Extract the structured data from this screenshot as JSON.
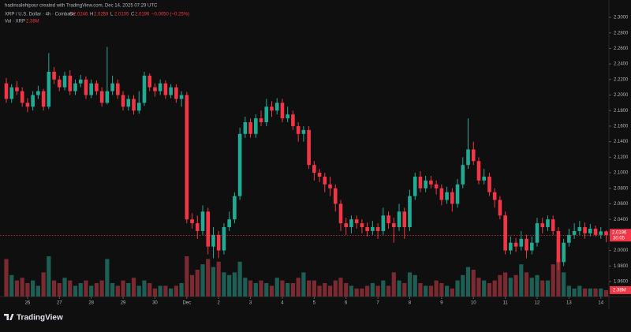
{
  "chart_data": {
    "type": "candlestick",
    "credit": "hadinsalehipour created with TradingView.com, Dec 14, 2025 07:29 UTC",
    "symbol": "XRP / U.S. Dollar · 4h · Coinbase",
    "legend_labels": [
      "O",
      "H",
      "L",
      "C"
    ],
    "change_text": "−0.0050 (−0.25%)",
    "volume_title": "Vol · XRP",
    "volume_label": "2.38M",
    "countdown": "30:05",
    "brand": "TradingView",
    "up_color": "#22ab94",
    "down_color": "#f23645",
    "up_volume_color": "#1d5f55",
    "down_volume_color": "#7a2a30",
    "ylim": [
      1.94,
      2.32
    ],
    "yticks": [
      {
        "value": 1.96,
        "label": "1.9600"
      },
      {
        "value": 1.98,
        "label": "1.9800"
      },
      {
        "value": 2.0,
        "label": "2.0000"
      },
      {
        "value": 2.02,
        "label": "2.0200"
      },
      {
        "value": 2.04,
        "label": "2.0400"
      },
      {
        "value": 2.06,
        "label": "2.0600"
      },
      {
        "value": 2.08,
        "label": "2.0800"
      },
      {
        "value": 2.1,
        "label": "2.1000"
      },
      {
        "value": 2.12,
        "label": "2.1200"
      },
      {
        "value": 2.14,
        "label": "2.1400"
      },
      {
        "value": 2.16,
        "label": "2.1600"
      },
      {
        "value": 2.18,
        "label": "2.1800"
      },
      {
        "value": 2.2,
        "label": "2.2000"
      },
      {
        "value": 2.22,
        "label": "2.2200"
      },
      {
        "value": 2.24,
        "label": "2.2400"
      },
      {
        "value": 2.26,
        "label": "2.2600"
      },
      {
        "value": 2.28,
        "label": "2.2800"
      },
      {
        "value": 2.3,
        "label": "2.3000"
      }
    ],
    "xticks": [
      {
        "value": 4,
        "label": "26"
      },
      {
        "value": 10,
        "label": "27"
      },
      {
        "value": 16,
        "label": "28"
      },
      {
        "value": 22,
        "label": "29"
      },
      {
        "value": 28,
        "label": "30"
      },
      {
        "value": 34,
        "label": "Dec"
      },
      {
        "value": 40,
        "label": "2"
      },
      {
        "value": 46,
        "label": "3"
      },
      {
        "value": 52,
        "label": "4"
      },
      {
        "value": 58,
        "label": "5"
      },
      {
        "value": 64,
        "label": "6"
      },
      {
        "value": 70,
        "label": "7"
      },
      {
        "value": 76,
        "label": "8"
      },
      {
        "value": 82,
        "label": "9"
      },
      {
        "value": 88,
        "label": "10"
      },
      {
        "value": 94,
        "label": "11"
      },
      {
        "value": 100,
        "label": "12"
      },
      {
        "value": 106,
        "label": "13"
      },
      {
        "value": 112,
        "label": "14"
      }
    ],
    "volume_ylim": [
      0,
      20
    ],
    "candles": [
      [
        2.215,
        2.222,
        2.19,
        2.195
      ],
      [
        2.195,
        2.214,
        2.19,
        2.21
      ],
      [
        2.21,
        2.218,
        2.2,
        2.205
      ],
      [
        2.205,
        2.21,
        2.185,
        2.19
      ],
      [
        2.19,
        2.196,
        2.178,
        2.185
      ],
      [
        2.185,
        2.205,
        2.18,
        2.2
      ],
      [
        2.2,
        2.212,
        2.195,
        2.205
      ],
      [
        2.205,
        2.208,
        2.18,
        2.185
      ],
      [
        2.185,
        2.254,
        2.182,
        2.23
      ],
      [
        2.23,
        2.236,
        2.214,
        2.22
      ],
      [
        2.22,
        2.225,
        2.205,
        2.21
      ],
      [
        2.21,
        2.23,
        2.206,
        2.225
      ],
      [
        2.225,
        2.232,
        2.2,
        2.205
      ],
      [
        2.205,
        2.22,
        2.2,
        2.215
      ],
      [
        2.215,
        2.226,
        2.21,
        2.22
      ],
      [
        2.22,
        2.224,
        2.195,
        2.2
      ],
      [
        2.2,
        2.22,
        2.196,
        2.215
      ],
      [
        2.215,
        2.219,
        2.2,
        2.205
      ],
      [
        2.205,
        2.21,
        2.185,
        2.19
      ],
      [
        2.19,
        2.262,
        2.188,
        2.205
      ],
      [
        2.205,
        2.225,
        2.2,
        2.215
      ],
      [
        2.215,
        2.22,
        2.195,
        2.2
      ],
      [
        2.2,
        2.205,
        2.18,
        2.185
      ],
      [
        2.185,
        2.2,
        2.18,
        2.195
      ],
      [
        2.195,
        2.2,
        2.175,
        2.18
      ],
      [
        2.18,
        2.205,
        2.176,
        2.19
      ],
      [
        2.19,
        2.23,
        2.186,
        2.225
      ],
      [
        2.225,
        2.228,
        2.205,
        2.21
      ],
      [
        2.21,
        2.215,
        2.198,
        2.205
      ],
      [
        2.205,
        2.22,
        2.2,
        2.215
      ],
      [
        2.215,
        2.219,
        2.195,
        2.2
      ],
      [
        2.2,
        2.214,
        2.196,
        2.21
      ],
      [
        2.21,
        2.214,
        2.19,
        2.195
      ],
      [
        2.195,
        2.205,
        2.185,
        2.2
      ],
      [
        2.2,
        2.204,
        2.035,
        2.04
      ],
      [
        2.04,
        2.048,
        2.028,
        2.035
      ],
      [
        2.035,
        2.045,
        2.015,
        2.025
      ],
      [
        2.025,
        2.058,
        2.02,
        2.05
      ],
      [
        2.05,
        2.055,
        1.995,
        2.005
      ],
      [
        2.005,
        2.03,
        1.99,
        2.02
      ],
      [
        2.02,
        2.025,
        1.99,
        2.0
      ],
      [
        2.0,
        2.035,
        1.995,
        2.03
      ],
      [
        2.03,
        2.05,
        2.025,
        2.04
      ],
      [
        2.04,
        2.075,
        2.035,
        2.07
      ],
      [
        2.07,
        2.158,
        2.065,
        2.15
      ],
      [
        2.15,
        2.172,
        2.145,
        2.165
      ],
      [
        2.165,
        2.17,
        2.145,
        2.15
      ],
      [
        2.15,
        2.175,
        2.145,
        2.17
      ],
      [
        2.17,
        2.18,
        2.16,
        2.165
      ],
      [
        2.165,
        2.195,
        2.16,
        2.185
      ],
      [
        2.185,
        2.192,
        2.172,
        2.18
      ],
      [
        2.18,
        2.196,
        2.175,
        2.19
      ],
      [
        2.19,
        2.195,
        2.165,
        2.17
      ],
      [
        2.17,
        2.185,
        2.165,
        2.175
      ],
      [
        2.175,
        2.18,
        2.155,
        2.16
      ],
      [
        2.16,
        2.165,
        2.14,
        2.15
      ],
      [
        2.15,
        2.16,
        2.14,
        2.155
      ],
      [
        2.155,
        2.16,
        2.105,
        2.11
      ],
      [
        2.11,
        2.115,
        2.09,
        2.1
      ],
      [
        2.1,
        2.105,
        2.088,
        2.095
      ],
      [
        2.095,
        2.1,
        2.075,
        2.085
      ],
      [
        2.085,
        2.095,
        2.07,
        2.08
      ],
      [
        2.08,
        2.085,
        2.05,
        2.06
      ],
      [
        2.06,
        2.065,
        2.025,
        2.035
      ],
      [
        2.035,
        2.042,
        2.02,
        2.03
      ],
      [
        2.03,
        2.045,
        2.022,
        2.04
      ],
      [
        2.04,
        2.045,
        2.028,
        2.035
      ],
      [
        2.035,
        2.04,
        2.022,
        2.03
      ],
      [
        2.03,
        2.036,
        2.018,
        2.025
      ],
      [
        2.025,
        2.038,
        2.02,
        2.03
      ],
      [
        2.03,
        2.035,
        2.015,
        2.025
      ],
      [
        2.025,
        2.055,
        2.02,
        2.045
      ],
      [
        2.045,
        2.05,
        2.028,
        2.035
      ],
      [
        2.035,
        2.042,
        2.01,
        2.03
      ],
      [
        2.03,
        2.06,
        2.025,
        2.05
      ],
      [
        2.05,
        2.055,
        2.015,
        2.03
      ],
      [
        2.03,
        2.078,
        2.025,
        2.07
      ],
      [
        2.07,
        2.1,
        2.065,
        2.095
      ],
      [
        2.095,
        2.102,
        2.075,
        2.08
      ],
      [
        2.08,
        2.096,
        2.075,
        2.09
      ],
      [
        2.09,
        2.096,
        2.08,
        2.085
      ],
      [
        2.085,
        2.09,
        2.072,
        2.08
      ],
      [
        2.08,
        2.085,
        2.058,
        2.065
      ],
      [
        2.065,
        2.082,
        2.06,
        2.075
      ],
      [
        2.075,
        2.08,
        2.05,
        2.06
      ],
      [
        2.06,
        2.092,
        2.055,
        2.085
      ],
      [
        2.085,
        2.12,
        2.08,
        2.11
      ],
      [
        2.11,
        2.17,
        2.105,
        2.13
      ],
      [
        2.13,
        2.14,
        2.11,
        2.115
      ],
      [
        2.115,
        2.12,
        2.085,
        2.09
      ],
      [
        2.09,
        2.105,
        2.085,
        2.095
      ],
      [
        2.095,
        2.1,
        2.07,
        2.075
      ],
      [
        2.075,
        2.08,
        2.055,
        2.065
      ],
      [
        2.065,
        2.07,
        2.04,
        2.045
      ],
      [
        2.045,
        2.05,
        1.995,
        2.0
      ],
      [
        2.0,
        2.018,
        1.995,
        2.01
      ],
      [
        2.01,
        2.016,
        1.998,
        2.005
      ],
      [
        2.005,
        2.025,
        2.0,
        2.015
      ],
      [
        2.015,
        2.02,
        1.99,
        2.0
      ],
      [
        2.0,
        2.018,
        1.995,
        2.01
      ],
      [
        2.01,
        2.042,
        2.005,
        2.035
      ],
      [
        2.035,
        2.042,
        2.022,
        2.03
      ],
      [
        2.03,
        2.045,
        2.025,
        2.04
      ],
      [
        2.04,
        2.045,
        2.02,
        2.025
      ],
      [
        2.025,
        2.03,
        1.975,
        1.985
      ],
      [
        1.985,
        2.015,
        1.98,
        2.01
      ],
      [
        2.01,
        2.028,
        2.005,
        2.02
      ],
      [
        2.02,
        2.035,
        2.015,
        2.025
      ],
      [
        2.025,
        2.038,
        2.02,
        2.03
      ],
      [
        2.03,
        2.036,
        2.015,
        2.022
      ],
      [
        2.022,
        2.034,
        2.018,
        2.028
      ],
      [
        2.028,
        2.032,
        2.018,
        2.02
      ],
      [
        2.02,
        2.03,
        2.015,
        2.0246
      ],
      [
        2.0246,
        2.0259,
        2.0105,
        2.0196
      ]
    ],
    "volume": [
      14,
      8,
      6,
      7,
      5,
      6,
      4,
      9,
      15,
      6,
      5,
      7,
      6,
      4,
      5,
      6,
      4,
      5,
      6,
      14,
      5,
      4,
      6,
      5,
      7,
      4,
      6,
      5,
      3,
      4,
      4,
      3,
      4,
      5,
      15,
      8,
      10,
      12,
      14,
      11,
      13,
      9,
      8,
      9,
      13,
      7,
      6,
      5,
      6,
      5,
      4,
      7,
      6,
      5,
      5,
      7,
      9,
      6,
      6,
      4,
      5,
      4,
      6,
      7,
      5,
      4,
      3,
      3,
      4,
      5,
      4,
      6,
      4,
      9,
      6,
      5,
      9,
      8,
      5,
      4,
      4,
      6,
      5,
      4,
      3,
      6,
      8,
      11,
      10,
      7,
      6,
      5,
      6,
      8,
      9,
      7,
      8,
      12,
      9,
      7,
      8,
      6,
      6,
      12,
      14,
      9,
      4,
      3,
      4,
      3,
      3,
      3,
      3,
      2.38
    ]
  }
}
